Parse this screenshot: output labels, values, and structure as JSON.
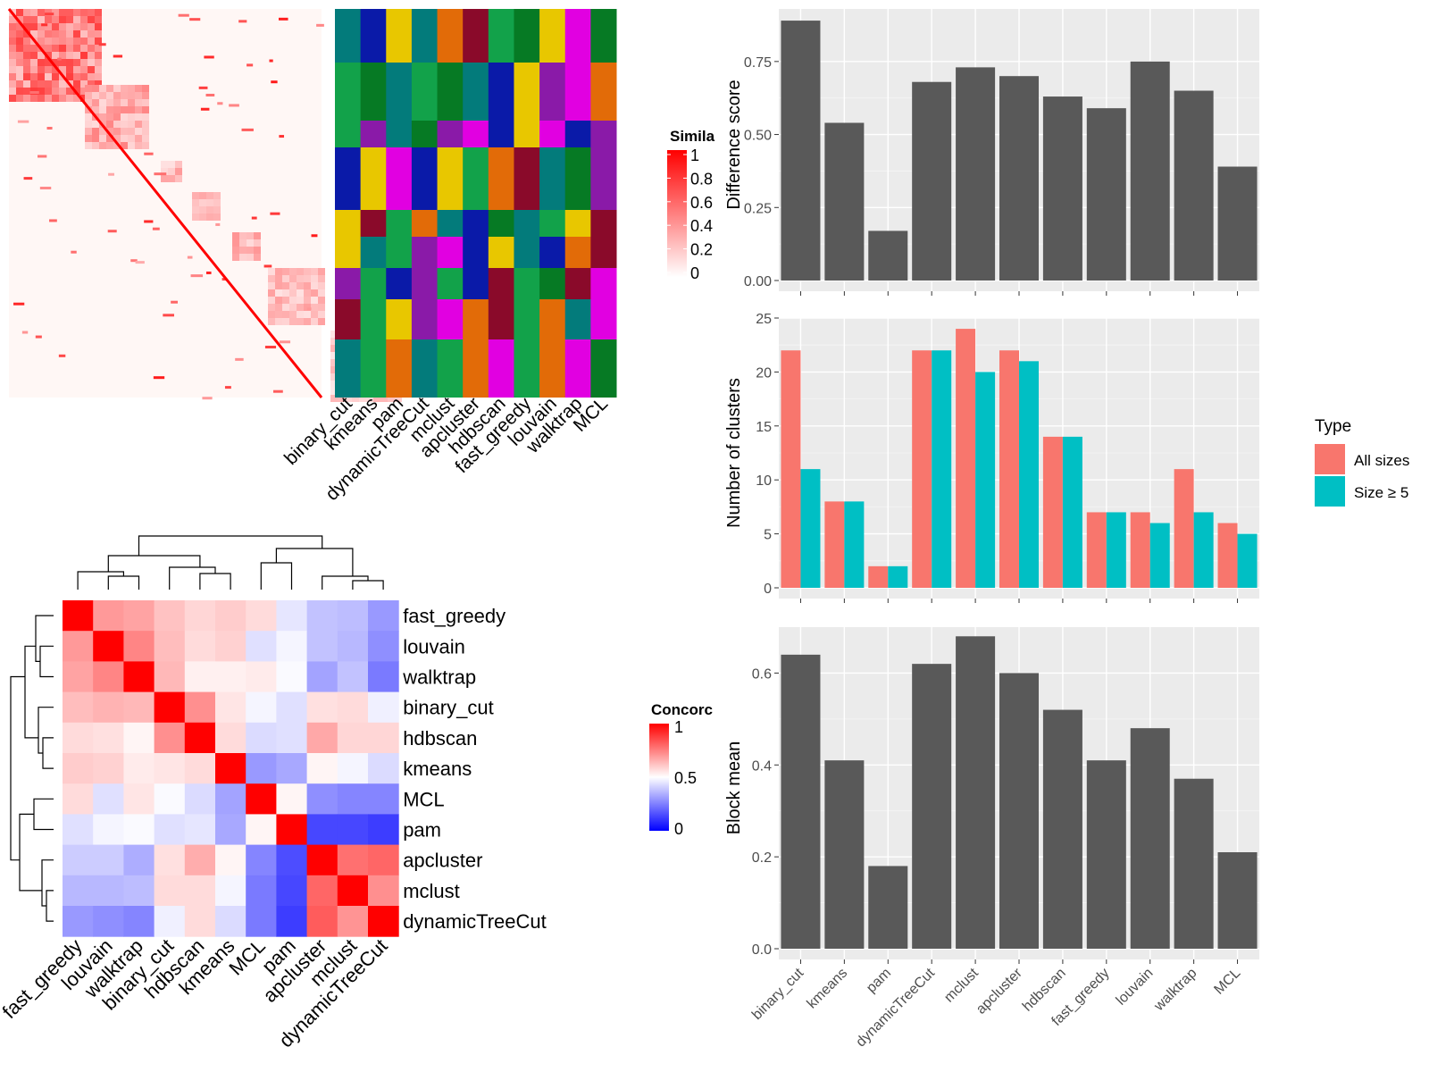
{
  "chart_data": [
    {
      "type": "heatmap",
      "id": "similarity",
      "legend_title": "Simila",
      "legend_ticks": [
        "1",
        "0.8",
        "0.6",
        "0.4",
        "0.2",
        "0"
      ],
      "colors": {
        "low": "#ffffff",
        "high": "#ff0000"
      },
      "columns": [
        "binary_cut",
        "kmeans",
        "pam",
        "dynamicTreeCut",
        "mclust",
        "apcluster",
        "hdbscan",
        "fast_greedy",
        "louvain",
        "walktrap",
        "MCL"
      ]
    },
    {
      "type": "heatmap",
      "id": "concordance",
      "legend_title": "Concorc",
      "legend_ticks": [
        "1",
        "0.5",
        "0"
      ],
      "colors": {
        "low": "#0000ff",
        "mid": "#ffffff",
        "high": "#ff0000"
      },
      "labels": [
        "fast_greedy",
        "louvain",
        "walktrap",
        "binary_cut",
        "hdbscan",
        "kmeans",
        "MCL",
        "pam",
        "apcluster",
        "mclust",
        "dynamicTreeCut"
      ],
      "values": [
        [
          1.0,
          0.7,
          0.68,
          0.62,
          0.58,
          0.6,
          0.57,
          0.45,
          0.38,
          0.37,
          0.3
        ],
        [
          0.7,
          1.0,
          0.74,
          0.63,
          0.57,
          0.59,
          0.44,
          0.48,
          0.38,
          0.36,
          0.28
        ],
        [
          0.68,
          0.74,
          1.0,
          0.64,
          0.53,
          0.53,
          0.54,
          0.49,
          0.32,
          0.38,
          0.24
        ],
        [
          0.63,
          0.65,
          0.64,
          1.0,
          0.72,
          0.55,
          0.48,
          0.44,
          0.56,
          0.57,
          0.47
        ],
        [
          0.57,
          0.56,
          0.52,
          0.72,
          1.0,
          0.57,
          0.43,
          0.44,
          0.67,
          0.58,
          0.58
        ],
        [
          0.6,
          0.59,
          0.54,
          0.55,
          0.57,
          1.0,
          0.3,
          0.33,
          0.52,
          0.48,
          0.43
        ],
        [
          0.57,
          0.44,
          0.55,
          0.49,
          0.43,
          0.32,
          1.0,
          0.52,
          0.28,
          0.26,
          0.26
        ],
        [
          0.44,
          0.48,
          0.49,
          0.44,
          0.45,
          0.33,
          0.52,
          1.0,
          0.14,
          0.14,
          0.12
        ],
        [
          0.4,
          0.4,
          0.34,
          0.56,
          0.66,
          0.52,
          0.26,
          0.15,
          1.0,
          0.78,
          0.8
        ],
        [
          0.36,
          0.36,
          0.37,
          0.57,
          0.57,
          0.48,
          0.24,
          0.14,
          0.8,
          1.0,
          0.72
        ],
        [
          0.3,
          0.28,
          0.26,
          0.47,
          0.57,
          0.43,
          0.24,
          0.12,
          0.82,
          0.71,
          1.0
        ]
      ]
    },
    {
      "type": "bar",
      "id": "difference",
      "categories": [
        "binary_cut",
        "kmeans",
        "pam",
        "dynamicTreeCut",
        "mclust",
        "apcluster",
        "hdbscan",
        "fast_greedy",
        "louvain",
        "walktrap",
        "MCL"
      ],
      "values": [
        0.89,
        0.54,
        0.17,
        0.68,
        0.73,
        0.7,
        0.63,
        0.59,
        0.75,
        0.65,
        0.39
      ],
      "ylabel": "Difference score",
      "ylim": [
        0,
        0.93
      ],
      "yticks": [
        "0.00",
        "0.25",
        "0.50",
        "0.75"
      ],
      "bar_color": "#595959",
      "grid": true
    },
    {
      "type": "bar",
      "id": "clusters",
      "categories": [
        "binary_cut",
        "kmeans",
        "pam",
        "dynamicTreeCut",
        "mclust",
        "apcluster",
        "hdbscan",
        "fast_greedy",
        "louvain",
        "walktrap",
        "MCL"
      ],
      "series": [
        {
          "name": "All sizes",
          "color": "#f8766d",
          "values": [
            22,
            8,
            2,
            22,
            24,
            22,
            14,
            7,
            7,
            11,
            6
          ]
        },
        {
          "name": "Size ≥ 5",
          "color": "#00bfc4",
          "values": [
            11,
            8,
            2,
            22,
            20,
            21,
            14,
            7,
            6,
            7,
            5
          ]
        }
      ],
      "ylabel": "Number of clusters",
      "ylim": [
        0,
        25
      ],
      "yticks": [
        "0",
        "5",
        "10",
        "15",
        "20",
        "25"
      ],
      "legend_title": "Type",
      "legend_position": "right",
      "grid": true
    },
    {
      "type": "bar",
      "id": "blockmean",
      "categories": [
        "binary_cut",
        "kmeans",
        "pam",
        "dynamicTreeCut",
        "mclust",
        "apcluster",
        "hdbscan",
        "fast_greedy",
        "louvain",
        "walktrap",
        "MCL"
      ],
      "values": [
        0.64,
        0.41,
        0.18,
        0.62,
        0.68,
        0.6,
        0.52,
        0.41,
        0.48,
        0.37,
        0.21
      ],
      "ylabel": "Block mean",
      "ylim": [
        0,
        0.7
      ],
      "yticks": [
        "0.0",
        "0.2",
        "0.4",
        "0.6"
      ],
      "bar_color": "#595959",
      "grid": true
    }
  ]
}
